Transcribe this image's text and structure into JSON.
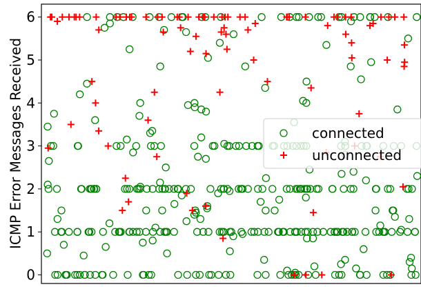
{
  "chart_data": {
    "type": "scatter",
    "ylabel": "ICMP Error Messages Received",
    "xlabel": "",
    "ylim": [
      -0.2,
      6.3
    ],
    "yticks": [
      0,
      1,
      2,
      3,
      4,
      5,
      6
    ],
    "xticks_visible": false,
    "grid": false,
    "legend_placement": "center-right",
    "series": [
      {
        "name": "connected",
        "marker": "open-circle",
        "color": "#008000",
        "values": [
          6,
          6,
          6,
          6,
          6,
          6,
          6,
          6,
          6,
          6,
          6,
          6,
          6,
          6,
          6,
          6,
          6,
          6,
          6,
          6,
          6,
          6,
          6,
          6,
          6,
          6,
          6,
          6,
          6,
          6,
          5.9,
          5.85,
          5.75,
          5.7,
          5.65,
          5.6,
          5.5,
          5.4,
          5.35,
          5.25,
          5.05,
          4.95,
          4.85,
          4.85,
          4.85,
          4.55,
          4.5,
          4.45,
          4.35,
          4.2,
          4.05,
          4,
          4,
          4,
          3.95,
          3.9,
          3.85,
          3.85,
          3.8,
          3.75,
          3.7,
          3.6,
          3.55,
          3.45,
          3.35,
          3.3,
          3.2,
          3.15,
          3.1,
          3.05,
          3,
          3,
          3,
          3,
          3,
          3,
          3,
          3,
          3,
          3,
          3,
          3,
          3,
          3,
          3,
          3,
          3,
          3,
          3,
          3,
          3,
          3,
          3,
          3,
          3,
          3,
          3,
          3,
          3,
          3,
          3,
          3,
          3,
          3,
          3,
          3,
          3,
          3,
          3,
          3,
          2.85,
          2.8,
          2.75,
          2.7,
          2.65,
          2.5,
          2.45,
          2.4,
          2.35,
          2.3,
          2.25,
          2.2,
          2.15,
          2.1,
          2.05,
          2,
          2,
          2,
          2,
          2,
          2,
          2,
          2,
          2,
          2,
          2,
          2,
          2,
          2,
          2,
          2,
          2,
          2,
          2,
          2,
          2,
          2,
          2,
          2,
          2,
          2,
          2,
          2,
          2,
          2,
          2,
          2,
          2,
          2,
          2,
          2,
          2,
          2,
          2,
          2,
          2,
          2,
          2,
          2,
          2,
          2,
          2,
          2,
          2,
          2,
          2,
          2,
          2,
          2,
          2,
          2,
          2,
          2,
          2,
          2,
          2,
          2,
          2,
          2,
          2,
          2,
          2,
          2,
          2,
          2,
          1.95,
          1.9,
          1.85,
          1.8,
          1.75,
          1.7,
          1.65,
          1.6,
          1.55,
          1.5,
          1.5,
          1.5,
          1.5,
          1.5,
          1.5,
          1.5,
          1.5,
          1.5,
          1.45,
          1.4,
          1.35,
          1.3,
          1.3,
          1.3,
          1.25,
          1.2,
          1.15,
          1.1,
          1.05,
          1,
          1,
          1,
          1,
          1,
          1,
          1,
          1,
          1,
          1,
          1,
          1,
          1,
          1,
          1,
          1,
          1,
          1,
          1,
          1,
          1,
          1,
          1,
          1,
          1,
          1,
          1,
          1,
          1,
          1,
          1,
          1,
          1,
          1,
          1,
          1,
          1,
          1,
          1,
          1,
          1,
          1,
          1,
          1,
          1,
          1,
          1,
          1,
          1,
          1,
          1,
          1,
          1,
          1,
          1,
          1,
          1,
          1,
          1,
          1,
          1,
          1,
          1,
          1,
          1,
          1,
          1,
          1,
          1,
          1,
          1,
          1,
          1,
          1,
          1,
          1,
          1,
          1,
          1,
          1,
          0.95,
          0.9,
          0.85,
          0.85,
          0.8,
          0.75,
          0.7,
          0.65,
          0.6,
          0.55,
          0.5,
          0.5,
          0.45,
          0.4,
          0.35,
          0.35,
          0.3,
          0.25,
          0.2,
          0.15,
          0.15,
          0.1,
          0.05,
          0,
          0,
          0,
          0,
          0,
          0,
          0,
          0,
          0,
          0,
          0,
          0,
          0,
          0,
          0,
          0,
          0,
          0,
          0,
          0,
          0,
          0,
          0,
          0,
          0,
          0,
          0,
          0,
          0,
          0,
          0,
          0,
          0,
          0,
          0,
          0,
          0,
          0,
          0,
          0,
          0,
          0,
          0,
          0,
          0,
          0,
          0,
          0,
          0,
          0
        ]
      },
      {
        "name": "unconnected",
        "marker": "plus",
        "color": "#ff0000",
        "values": [
          6,
          6,
          6,
          6,
          6,
          6,
          6,
          6,
          6,
          6,
          6,
          6,
          6,
          6,
          6,
          6,
          6,
          6,
          6,
          6,
          6,
          6,
          6,
          6,
          6,
          6,
          6,
          6,
          6,
          6,
          6,
          6,
          6,
          6,
          6,
          6,
          6,
          6,
          6,
          6,
          5.9,
          5.85,
          5.85,
          5.8,
          5.8,
          5.75,
          5.75,
          5.7,
          5.7,
          5.65,
          5.65,
          5.6,
          5.6,
          5.55,
          5.4,
          5.35,
          5.25,
          5.2,
          5.15,
          5.05,
          5,
          5,
          4.95,
          4.85,
          4.5,
          4.5,
          4.35,
          4.25,
          4.25,
          4,
          3.75,
          3.6,
          3.5,
          3.35,
          3,
          3,
          2.95,
          2.85,
          2.75,
          2.75,
          2.25,
          2.05,
          1.9,
          1.7,
          1.6,
          1.5,
          1.5,
          1.45,
          0.85,
          0,
          0,
          0,
          0
        ]
      }
    ]
  }
}
